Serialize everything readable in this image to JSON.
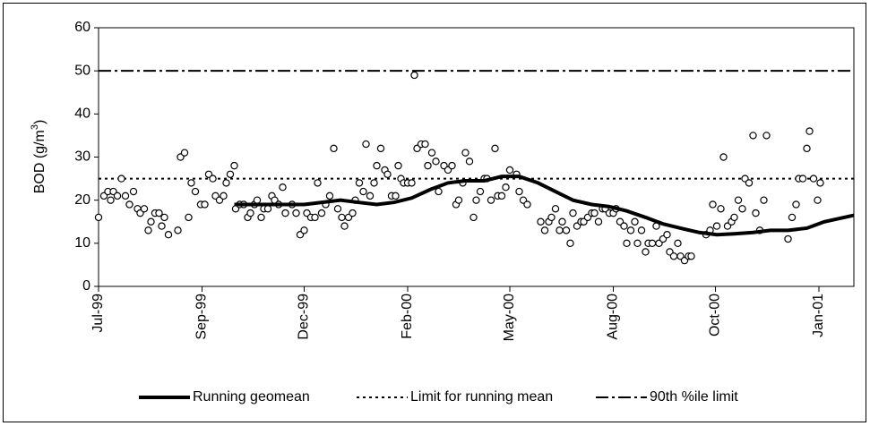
{
  "chart_data": {
    "type": "scatter",
    "ylabel": {
      "text": "BOD (g/m",
      "sup": "3",
      "end": ")"
    },
    "xlim": [
      36342,
      36904
    ],
    "xticks": [
      {
        "value": 36342,
        "label": "Jul-99"
      },
      {
        "value": 36419,
        "label": "Sep-99"
      },
      {
        "value": 36495,
        "label": "Dec-99"
      },
      {
        "value": 36572,
        "label": "Feb-00"
      },
      {
        "value": 36648,
        "label": "May-00"
      },
      {
        "value": 36725,
        "label": "Aug-00"
      },
      {
        "value": 36801,
        "label": "Oct-00"
      },
      {
        "value": 36878,
        "label": "Jan-01"
      }
    ],
    "ylim": [
      0,
      60
    ],
    "yticks": [
      0,
      10,
      20,
      30,
      40,
      50,
      60
    ],
    "grid": false,
    "legend": "bottom",
    "series": [
      {
        "type": "scatter",
        "color": "#000000",
        "x": [
          36342,
          36346,
          36349,
          36351,
          36353,
          36356,
          36359,
          36362,
          36365,
          36368,
          36371,
          36373,
          36376,
          36379,
          36381,
          36384,
          36387,
          36389,
          36391,
          36394,
          36401,
          36403,
          36406,
          36409,
          36411,
          36414,
          36418,
          36421,
          36424,
          36427,
          36429,
          36432,
          36435,
          36437,
          36440,
          36443,
          36444,
          36447,
          36450,
          36453,
          36455,
          36458,
          36460,
          36463,
          36465,
          36468,
          36471,
          36473,
          36476,
          36479,
          36481,
          36486,
          36489,
          36492,
          36495,
          36497,
          36500,
          36503,
          36505,
          36508,
          36511,
          36514,
          36517,
          36520,
          36523,
          36525,
          36528,
          36531,
          36533,
          36536,
          36539,
          36541,
          36544,
          36547,
          36549,
          36552,
          36555,
          36557,
          36560,
          36563,
          36565,
          36567,
          36569,
          36572,
          36575,
          36577,
          36579,
          36582,
          36585,
          36587,
          36590,
          36593,
          36595,
          36599,
          36602,
          36605,
          36608,
          36610,
          36613,
          36615,
          36618,
          36621,
          36623,
          36626,
          36629,
          36631,
          36634,
          36637,
          36639,
          36642,
          36645,
          36648,
          36653,
          36655,
          36658,
          36661,
          36671,
          36674,
          36677,
          36679,
          36682,
          36685,
          36687,
          36690,
          36693,
          36695,
          36698,
          36701,
          36703,
          36706,
          36709,
          36711,
          36714,
          36717,
          36719,
          36722,
          36725,
          36727,
          36730,
          36733,
          36735,
          36738,
          36741,
          36743,
          36746,
          36749,
          36751,
          36754,
          36757,
          36759,
          36762,
          36765,
          36767,
          36770,
          36773,
          36775,
          36778,
          36781,
          36783,
          36794,
          36797,
          36799,
          36802,
          36805,
          36807,
          36810,
          36813,
          36815,
          36818,
          36821,
          36823,
          36826,
          36829,
          36831,
          36834,
          36837,
          36839,
          36855,
          36858,
          36861,
          36863,
          36866,
          36869,
          36871,
          36874,
          36877,
          36879
        ],
        "values": [
          16,
          21,
          22,
          20,
          22,
          21,
          25,
          21,
          19,
          22,
          18,
          17,
          18,
          13,
          15,
          17,
          17,
          14,
          16,
          12,
          13,
          30,
          31,
          16,
          24,
          22,
          19,
          19,
          26,
          25,
          21,
          20,
          21,
          24,
          26,
          28,
          18,
          19,
          19,
          16,
          17,
          19,
          20,
          16,
          18,
          18,
          21,
          20,
          19,
          23,
          17,
          19,
          17,
          12,
          13,
          17,
          16,
          16,
          24,
          17,
          19,
          21,
          32,
          18,
          16,
          14,
          16,
          17,
          20,
          24,
          22,
          33,
          21,
          24,
          28,
          32,
          27,
          26,
          21,
          21,
          28,
          25,
          24,
          24,
          24,
          49,
          32,
          33,
          33,
          28,
          31,
          29,
          22,
          28,
          27,
          28,
          19,
          20,
          24,
          31,
          29,
          16,
          20,
          22,
          25,
          25,
          20,
          32,
          21,
          21,
          23,
          27,
          26,
          22,
          20,
          19,
          15,
          13,
          15,
          16,
          18,
          13,
          15,
          13,
          10,
          17,
          14,
          15,
          15,
          16,
          17,
          17,
          15,
          18,
          18,
          17,
          17,
          18,
          15,
          14,
          10,
          13,
          15,
          10,
          13,
          8,
          10,
          10,
          14,
          10,
          11,
          12,
          8,
          7,
          10,
          7,
          6,
          7,
          7,
          12,
          13,
          19,
          14,
          18,
          30,
          14,
          15,
          16,
          20,
          18,
          25,
          24,
          35,
          17,
          13,
          20,
          35,
          11,
          16,
          19,
          25,
          25,
          32,
          36,
          25,
          20,
          24
        ]
      },
      {
        "type": "line",
        "name": "Running geomean",
        "color": "#000000",
        "x": [
          36443,
          36469,
          36495,
          36522,
          36535,
          36549,
          36562,
          36575,
          36589,
          36602,
          36615,
          36629,
          36642,
          36655,
          36669,
          36682,
          36695,
          36709,
          36722,
          36735,
          36749,
          36762,
          36775,
          36789,
          36802,
          36815,
          36829,
          36842,
          36855,
          36869,
          36882,
          36904
        ],
        "values": [
          19,
          19,
          19,
          20,
          19.5,
          19,
          19.5,
          20.5,
          22.5,
          24,
          24.5,
          24.5,
          25.5,
          25.5,
          24,
          22,
          20,
          19,
          18.5,
          17.5,
          16,
          14.5,
          13.5,
          12.5,
          12,
          12.2,
          12.5,
          13,
          13,
          13.5,
          15,
          16.5
        ]
      }
    ],
    "hlines": [
      {
        "name": "Limit for running mean",
        "value": 25,
        "dash": "3 4",
        "color": "#000000"
      },
      {
        "name": "90th %ile limit",
        "value": 50,
        "dash": "14 4 3 4",
        "color": "#000000"
      }
    ]
  }
}
